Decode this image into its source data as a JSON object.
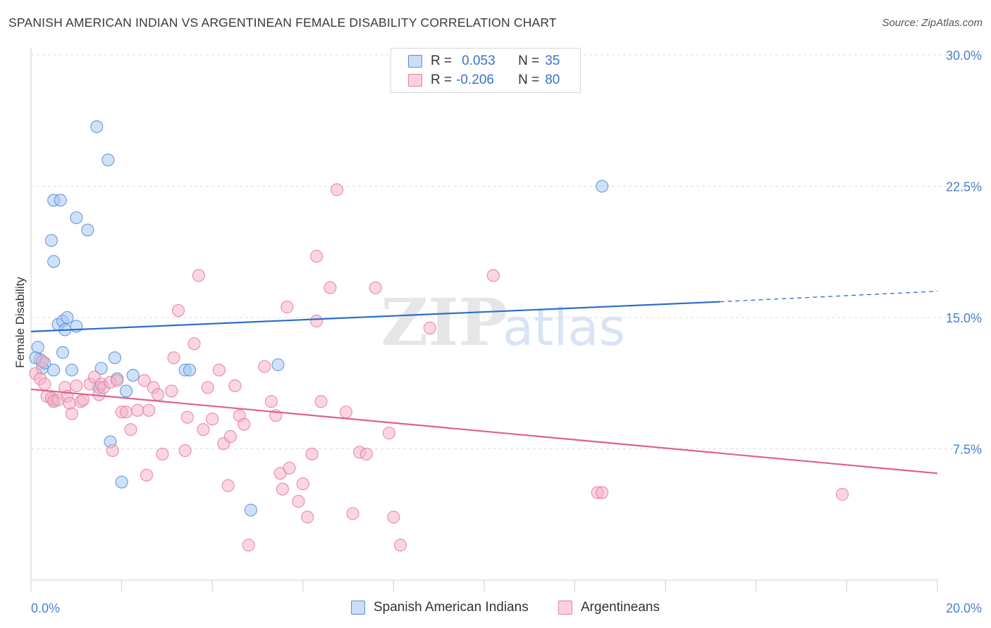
{
  "header": {
    "title": "SPANISH AMERICAN INDIAN VS ARGENTINEAN FEMALE DISABILITY CORRELATION CHART",
    "source": "Source: ZipAtlas.com"
  },
  "legend": {
    "rows": [
      {
        "r_label": "R =",
        "r_value": "0.053",
        "n_label": "N =",
        "n_value": "35",
        "color": "#a8c8f0"
      },
      {
        "r_label": "R =",
        "r_value": "-0.206",
        "n_label": "N =",
        "n_value": "80",
        "color": "#f6b4c8"
      }
    ]
  },
  "bottom_legend": [
    {
      "label": "Spanish American Indians",
      "color": "#a8c8f0"
    },
    {
      "label": "Argentineans",
      "color": "#f6b4c8"
    }
  ],
  "watermark": {
    "zip": "ZIP",
    "atlas": "atlas"
  },
  "chart_data": {
    "type": "scatter",
    "title": "SPANISH AMERICAN INDIAN VS ARGENTINEAN FEMALE DISABILITY CORRELATION CHART",
    "xlabel": "",
    "ylabel": "Female Disability",
    "xlim": [
      0,
      20
    ],
    "ylim": [
      0,
      30
    ],
    "x_tick_labels": [
      "0.0%",
      "20.0%"
    ],
    "y_ticks": [
      7.5,
      15.0,
      22.5,
      30.0
    ],
    "y_tick_labels": [
      "7.5%",
      "15.0%",
      "22.5%",
      "30.0%"
    ],
    "grid": true,
    "series": [
      {
        "name": "Spanish American Indians",
        "color": "#5a8fd8",
        "fill": "#a8c8f0",
        "trend": {
          "x0": 0,
          "y0": 14.2,
          "x1": 15.2,
          "y1": 15.9,
          "dashed_to_x": 20,
          "dashed_to_y": 16.5,
          "color": "#2a6ccc"
        },
        "points": [
          [
            0.15,
            13.3
          ],
          [
            0.2,
            12.6
          ],
          [
            0.25,
            12.1
          ],
          [
            0.3,
            12.4
          ],
          [
            0.45,
            19.4
          ],
          [
            0.5,
            10.3
          ],
          [
            0.5,
            18.2
          ],
          [
            0.5,
            12.0
          ],
          [
            0.5,
            21.7
          ],
          [
            0.65,
            21.7
          ],
          [
            0.6,
            14.6
          ],
          [
            0.7,
            14.8
          ],
          [
            0.7,
            13.0
          ],
          [
            0.75,
            14.3
          ],
          [
            0.8,
            15.0
          ],
          [
            1.0,
            20.7
          ],
          [
            1.0,
            14.5
          ],
          [
            1.25,
            20.0
          ],
          [
            1.45,
            25.9
          ],
          [
            1.55,
            12.1
          ],
          [
            1.5,
            11.0
          ],
          [
            1.7,
            24.0
          ],
          [
            1.75,
            7.9
          ],
          [
            1.85,
            12.7
          ],
          [
            1.9,
            11.5
          ],
          [
            2.0,
            5.6
          ],
          [
            2.1,
            10.8
          ],
          [
            2.25,
            11.7
          ],
          [
            3.4,
            12.0
          ],
          [
            3.5,
            12.0
          ],
          [
            4.85,
            4.0
          ],
          [
            5.45,
            12.3
          ],
          [
            12.6,
            22.5
          ],
          [
            0.1,
            12.7
          ],
          [
            0.9,
            12.0
          ]
        ]
      },
      {
        "name": "Argentineans",
        "color": "#e87ea0",
        "fill": "#f6b4c8",
        "trend": {
          "x0": 0,
          "y0": 10.9,
          "x1": 20,
          "y1": 6.1,
          "color": "#e0608c"
        },
        "points": [
          [
            0.1,
            11.8
          ],
          [
            0.2,
            11.5
          ],
          [
            0.3,
            11.2
          ],
          [
            0.35,
            10.5
          ],
          [
            0.45,
            10.4
          ],
          [
            0.5,
            10.2
          ],
          [
            0.6,
            10.3
          ],
          [
            0.75,
            11.0
          ],
          [
            0.8,
            10.5
          ],
          [
            0.85,
            10.1
          ],
          [
            0.9,
            9.5
          ],
          [
            1.0,
            11.1
          ],
          [
            1.1,
            10.2
          ],
          [
            1.15,
            10.3
          ],
          [
            1.3,
            11.2
          ],
          [
            1.4,
            11.6
          ],
          [
            1.5,
            10.6
          ],
          [
            1.55,
            11.2
          ],
          [
            1.6,
            11.0
          ],
          [
            1.75,
            11.3
          ],
          [
            1.8,
            7.4
          ],
          [
            1.9,
            11.4
          ],
          [
            2.0,
            9.6
          ],
          [
            2.1,
            9.6
          ],
          [
            2.2,
            8.6
          ],
          [
            2.35,
            9.7
          ],
          [
            2.5,
            11.4
          ],
          [
            2.55,
            6.0
          ],
          [
            2.6,
            9.7
          ],
          [
            2.7,
            11.0
          ],
          [
            2.8,
            10.6
          ],
          [
            2.9,
            7.2
          ],
          [
            3.1,
            10.8
          ],
          [
            3.15,
            12.7
          ],
          [
            3.25,
            15.4
          ],
          [
            3.4,
            7.4
          ],
          [
            3.45,
            9.3
          ],
          [
            3.6,
            13.5
          ],
          [
            3.7,
            17.4
          ],
          [
            3.8,
            8.6
          ],
          [
            3.9,
            11.0
          ],
          [
            4.0,
            9.2
          ],
          [
            4.15,
            12.0
          ],
          [
            4.25,
            7.8
          ],
          [
            4.4,
            8.2
          ],
          [
            4.35,
            5.4
          ],
          [
            4.5,
            11.1
          ],
          [
            4.6,
            9.4
          ],
          [
            4.7,
            8.9
          ],
          [
            4.8,
            2.0
          ],
          [
            5.15,
            12.2
          ],
          [
            5.3,
            10.2
          ],
          [
            5.4,
            9.4
          ],
          [
            5.5,
            6.1
          ],
          [
            5.55,
            5.2
          ],
          [
            5.65,
            15.6
          ],
          [
            5.7,
            6.4
          ],
          [
            5.9,
            4.5
          ],
          [
            6.0,
            5.5
          ],
          [
            6.1,
            3.6
          ],
          [
            6.2,
            7.2
          ],
          [
            6.3,
            14.8
          ],
          [
            6.4,
            10.2
          ],
          [
            6.6,
            16.7
          ],
          [
            6.75,
            22.3
          ],
          [
            6.95,
            9.6
          ],
          [
            7.1,
            3.8
          ],
          [
            7.25,
            7.3
          ],
          [
            7.4,
            7.2
          ],
          [
            7.6,
            16.7
          ],
          [
            7.9,
            8.4
          ],
          [
            8.0,
            3.6
          ],
          [
            8.15,
            2.0
          ],
          [
            8.8,
            14.4
          ],
          [
            10.2,
            17.4
          ],
          [
            12.5,
            5.0
          ],
          [
            12.6,
            5.0
          ],
          [
            17.9,
            4.9
          ],
          [
            6.3,
            18.5
          ],
          [
            0.25,
            12.5
          ]
        ]
      }
    ]
  }
}
